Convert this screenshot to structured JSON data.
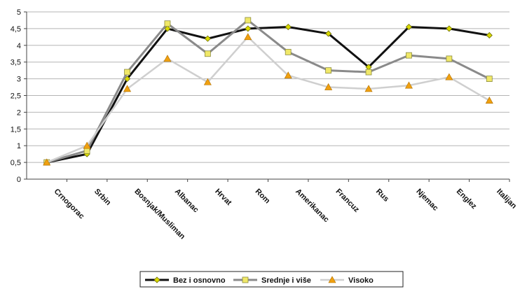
{
  "chart_data": {
    "type": "line",
    "title": "",
    "xlabel": "",
    "ylabel": "",
    "ylim": [
      0,
      5
    ],
    "yticks": [
      "0",
      "0,5",
      "1",
      "1,5",
      "2",
      "2,5",
      "3",
      "3,5",
      "4",
      "4,5",
      "5"
    ],
    "grid": "horizontal",
    "legend_position": "bottom",
    "categories": [
      "Crnogorac",
      "Srbin",
      "Bosnjak/Musliman",
      "Albanac",
      "Hrvat",
      "Rom",
      "Amerikanac",
      "Francuz",
      "Rus",
      "Njemac",
      "Englez",
      "Italijan"
    ],
    "series": [
      {
        "name": "Bez i osnovno",
        "color": "#111111",
        "marker": "diamond",
        "markerColor": "#d9d900",
        "values": [
          0.5,
          0.75,
          3.0,
          4.5,
          4.2,
          4.5,
          4.55,
          4.35,
          3.35,
          4.55,
          4.5,
          4.3
        ]
      },
      {
        "name": "Srednje i više",
        "color": "#8a8a8a",
        "marker": "square",
        "markerColor": "#f0e868",
        "values": [
          0.5,
          0.85,
          3.2,
          4.65,
          3.75,
          4.75,
          3.8,
          3.25,
          3.2,
          3.7,
          3.6,
          3.0
        ]
      },
      {
        "name": "Visoko",
        "color": "#cfcfcf",
        "marker": "triangle",
        "markerColor": "#f0a010",
        "values": [
          0.5,
          1.0,
          2.7,
          3.6,
          2.9,
          4.25,
          3.1,
          2.75,
          2.7,
          2.8,
          3.05,
          2.35
        ]
      }
    ]
  }
}
